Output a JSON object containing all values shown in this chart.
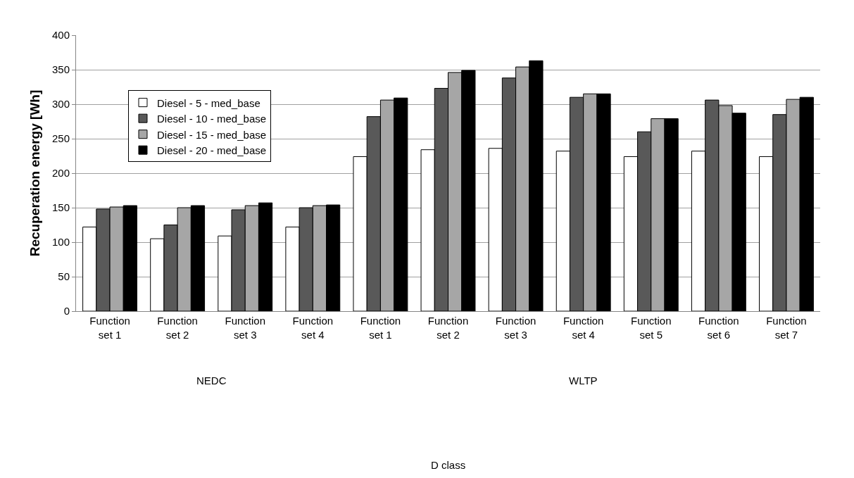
{
  "chart_data": {
    "type": "bar",
    "ylabel": "Recuperation energy [Wh]",
    "annotations": [
      "NEDC",
      "WLTP",
      "D class"
    ],
    "categories": [
      "Function set 1",
      "Function set 2",
      "Function set 3",
      "Function set 4",
      "Function set 1",
      "Function set 2",
      "Function set 3",
      "Function set 4",
      "Function set 5",
      "Function set 6",
      "Function set 7"
    ],
    "series": [
      {
        "name": "Diesel - 5 - med_base",
        "color": "#ffffff",
        "values": [
          122,
          105,
          109,
          122,
          224,
          234,
          236,
          232,
          224,
          232,
          224
        ]
      },
      {
        "name": "Diesel - 10 - med_base",
        "color": "#595959",
        "values": [
          148,
          125,
          147,
          150,
          282,
          323,
          338,
          310,
          260,
          306,
          285
        ]
      },
      {
        "name": "Diesel - 15 - med_base",
        "color": "#a6a6a6",
        "values": [
          151,
          150,
          153,
          153,
          306,
          346,
          354,
          315,
          279,
          298,
          307
        ]
      },
      {
        "name": "Diesel - 20 - med_base",
        "color": "#000000",
        "values": [
          153,
          153,
          157,
          154,
          309,
          349,
          363,
          315,
          279,
          287,
          310
        ]
      }
    ],
    "ylim": [
      0,
      400
    ],
    "yticks": [
      0,
      50,
      100,
      150,
      200,
      250,
      300,
      350,
      400
    ],
    "grid": "y",
    "legend": "top left"
  }
}
